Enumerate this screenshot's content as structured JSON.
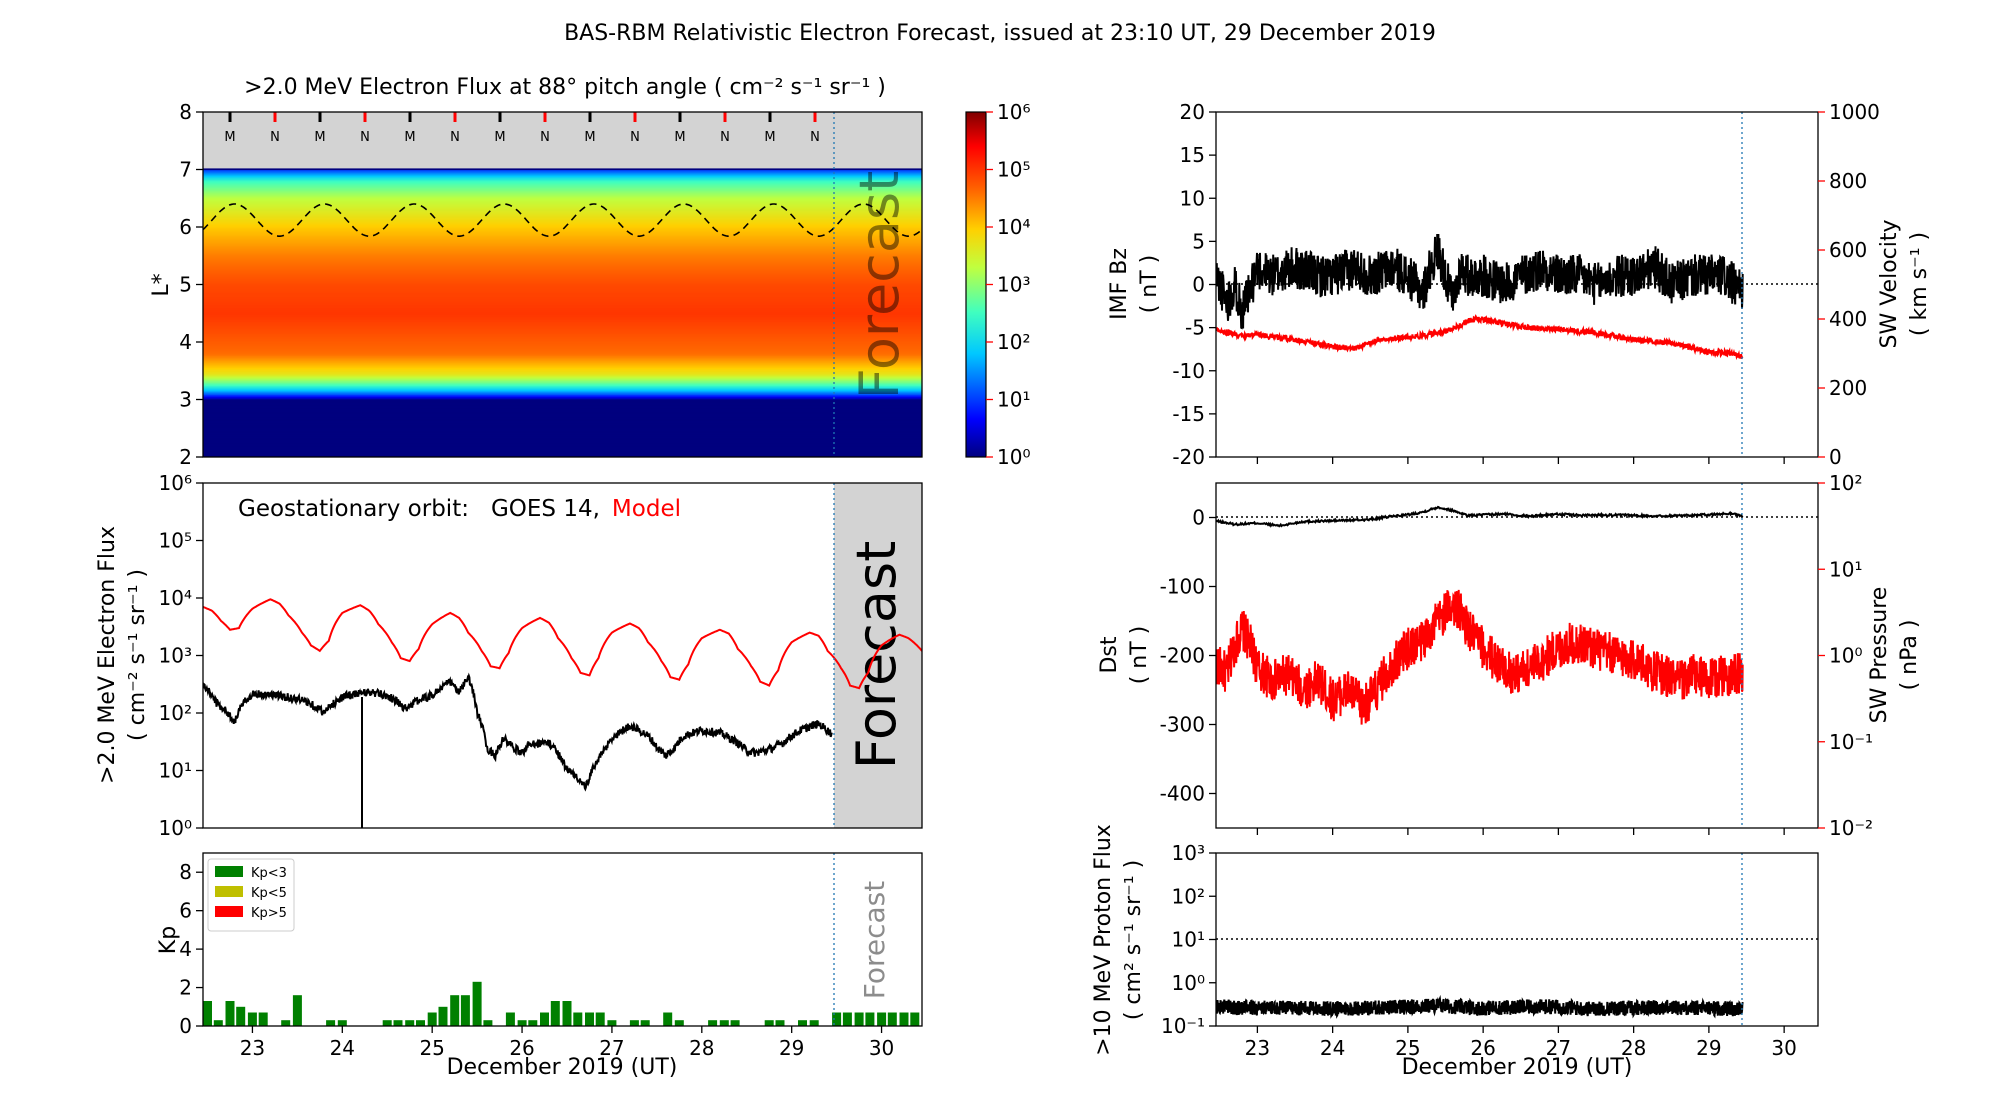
{
  "title": "BAS-RBM Relativistic Electron Forecast, issued at 23:10 UT, 29 December 2019",
  "x_axis": {
    "label": "December 2019 (UT)",
    "ticks": [
      23,
      24,
      25,
      26,
      27,
      28,
      29,
      30
    ],
    "range": [
      22.45,
      30.45
    ],
    "forecast_start": 29.46,
    "forecast_label": "Forecast"
  },
  "panels": {
    "lstar": {
      "title": ">2.0 MeV Electron Flux at 88° pitch angle ( cm⁻² s⁻¹ sr⁻¹ )",
      "ylabel": "L*",
      "yticks": [
        2,
        3,
        4,
        5,
        6,
        7,
        8
      ],
      "mn_markers": [
        "M",
        "N",
        "M",
        "N",
        "M",
        "N",
        "M",
        "N",
        "M",
        "N",
        "M",
        "N",
        "M",
        "N"
      ],
      "colorbar_ticks": [
        "10⁰",
        "10¹",
        "10²",
        "10³",
        "10⁴",
        "10⁵",
        "10⁶"
      ]
    },
    "geo": {
      "label_prefix": "Geostationary orbit:",
      "sat": "GOES 14,",
      "model": "Model",
      "model_color": "#ff0000",
      "ylabel_1": ">2.0 MeV Electron Flux",
      "ylabel_2": "( cm⁻² s⁻¹ sr⁻¹ )",
      "yticks": [
        "10⁰",
        "10¹",
        "10²",
        "10³",
        "10⁴",
        "10⁵",
        "10⁶"
      ]
    },
    "kp": {
      "ylabel": "Kp",
      "yticks": [
        0,
        2,
        4,
        6,
        8
      ],
      "legend": [
        {
          "label": "Kp<3",
          "color": "#008000"
        },
        {
          "label": "Kp<5",
          "color": "#bfbf00"
        },
        {
          "label": "Kp>5",
          "color": "#ff0000"
        }
      ]
    },
    "imf": {
      "ylabel_1": "IMF Bz",
      "ylabel_2": "( nT )",
      "yticks": [
        -20,
        -15,
        -10,
        -5,
        0,
        5,
        10,
        15,
        20
      ],
      "ylabel_right_1": "SW Velocity",
      "ylabel_right_2": "( km s⁻¹ )",
      "yticks_right": [
        0,
        200,
        400,
        600,
        800,
        1000
      ]
    },
    "dst": {
      "ylabel_1": "Dst",
      "ylabel_2": "( nT )",
      "yticks": [
        0,
        -100,
        -200,
        -300,
        -400
      ],
      "ylabel_right_1": "SW Pressure",
      "ylabel_right_2": "( nPa )",
      "yticks_right": [
        "10⁻²",
        "10⁻¹",
        "10⁰",
        "10¹",
        "10²"
      ]
    },
    "proton": {
      "ylabel_1": ">10 MeV Proton Flux",
      "ylabel_2": "( cm² s⁻¹ sr⁻¹ )",
      "yticks": [
        "10⁻¹",
        "10⁰",
        "10¹",
        "10²",
        "10³"
      ]
    }
  },
  "chart_data": [
    {
      "type": "heatmap",
      "title": ">2.0 MeV Electron Flux at 88° pitch angle ( cm⁻² s⁻¹ sr⁻¹ )",
      "ylabel": "L*",
      "ylim": [
        2,
        8
      ],
      "colorbar": {
        "scale": "log",
        "range": [
          1,
          1000000
        ]
      },
      "flux_profile": [
        [
          2.0,
          0
        ],
        [
          3.0,
          0
        ],
        [
          3.1,
          1.2
        ],
        [
          3.25,
          2.5
        ],
        [
          3.45,
          3.7
        ],
        [
          3.8,
          4.6
        ],
        [
          4.5,
          5.0
        ],
        [
          5.0,
          4.85
        ],
        [
          5.5,
          4.5
        ],
        [
          6.0,
          4.0
        ],
        [
          6.5,
          3.3
        ],
        [
          6.8,
          2.5
        ],
        [
          7.0,
          1.0
        ],
        [
          7.02,
          -1
        ]
      ],
      "dashed_line": {
        "base": 6.12,
        "amplitude": 0.28,
        "period_days": 1.0
      }
    },
    {
      "type": "line",
      "xlabel": "December 2019 (UT)",
      "ylabel": ">2.0 MeV Electron Flux ( cm⁻² s⁻¹ sr⁻¹ )",
      "yscale": "log",
      "ylim": [
        1,
        1000000
      ],
      "series": [
        {
          "name": "GOES 14",
          "color": "#000000",
          "x": [
            22.45,
            22.6,
            22.8,
            23.0,
            23.3,
            23.6,
            23.8,
            24.0,
            24.2,
            24.3,
            24.5,
            24.7,
            24.9,
            25.0,
            25.2,
            25.3,
            25.4,
            25.5,
            25.6,
            25.7,
            25.8,
            25.9,
            26.0,
            26.1,
            26.3,
            26.5,
            26.6,
            26.7,
            26.75,
            26.8,
            26.9,
            27.0,
            27.2,
            27.4,
            27.5,
            27.6,
            27.7,
            27.8,
            28.0,
            28.2,
            28.4,
            28.5,
            28.6,
            28.8,
            28.9,
            29.0,
            29.1,
            29.3,
            29.45
          ],
          "y": [
            300,
            150,
            70,
            220,
            200,
            160,
            100,
            190,
            220,
            230,
            200,
            120,
            180,
            200,
            350,
            220,
            400,
            100,
            25,
            18,
            35,
            25,
            20,
            30,
            30,
            10,
            8,
            5,
            7,
            12,
            20,
            35,
            60,
            40,
            25,
            18,
            25,
            40,
            50,
            45,
            30,
            22,
            20,
            25,
            30,
            40,
            50,
            65,
            42
          ]
        },
        {
          "name": "Model",
          "color": "#ff0000",
          "x": [
            22.45,
            22.55,
            22.65,
            22.75,
            22.85,
            23.0,
            23.2,
            23.3,
            23.4,
            23.55,
            23.65,
            23.75,
            23.85,
            24.0,
            24.2,
            24.3,
            24.4,
            24.55,
            24.65,
            24.75,
            24.85,
            25.0,
            25.2,
            25.3,
            25.4,
            25.55,
            25.65,
            25.75,
            25.85,
            26.0,
            26.2,
            26.3,
            26.4,
            26.55,
            26.65,
            26.75,
            26.85,
            27.0,
            27.2,
            27.3,
            27.4,
            27.55,
            27.65,
            27.75,
            27.85,
            28.0,
            28.2,
            28.3,
            28.4,
            28.55,
            28.65,
            28.75,
            28.85,
            29.0,
            29.2,
            29.3,
            29.4,
            29.55,
            29.65,
            29.75,
            29.85,
            30.0,
            30.2,
            30.3,
            30.45
          ],
          "y": [
            7000,
            6000,
            4000,
            2800,
            3000,
            6500,
            9500,
            8000,
            5000,
            2500,
            1500,
            1200,
            1800,
            5500,
            7500,
            6000,
            3500,
            1700,
            900,
            800,
            1300,
            3500,
            5500,
            4500,
            2500,
            1200,
            650,
            600,
            1100,
            3000,
            4500,
            3700,
            2000,
            900,
            500,
            450,
            900,
            2500,
            3600,
            3000,
            1700,
            800,
            420,
            380,
            700,
            2000,
            2800,
            2400,
            1300,
            650,
            350,
            300,
            550,
            1700,
            2500,
            2200,
            1200,
            600,
            300,
            270,
            500,
            1500,
            2300,
            2000,
            1200
          ]
        }
      ]
    },
    {
      "type": "bar",
      "ylabel": "Kp",
      "ylim": [
        0,
        9
      ],
      "x": [
        22.5,
        22.62,
        22.75,
        22.87,
        23.0,
        23.12,
        23.37,
        23.5,
        23.87,
        24.0,
        24.5,
        24.62,
        24.75,
        24.87,
        25.0,
        25.12,
        25.25,
        25.37,
        25.5,
        25.62,
        25.87,
        26.0,
        26.12,
        26.25,
        26.37,
        26.5,
        26.62,
        26.75,
        26.87,
        27.0,
        27.25,
        27.37,
        27.62,
        27.75,
        28.12,
        28.25,
        28.37,
        28.75,
        28.87,
        29.12,
        29.25,
        29.5,
        29.62,
        29.75,
        29.87,
        30.0,
        30.12,
        30.25,
        30.37
      ],
      "values": [
        1.3,
        0.3,
        1.3,
        1.0,
        0.7,
        0.7,
        0.3,
        1.6,
        0.3,
        0.3,
        0.3,
        0.3,
        0.3,
        0.3,
        0.7,
        1.0,
        1.6,
        1.6,
        2.3,
        0.3,
        0.7,
        0.3,
        0.3,
        0.7,
        1.3,
        1.3,
        0.7,
        0.7,
        0.7,
        0.3,
        0.3,
        0.3,
        0.7,
        0.3,
        0.3,
        0.3,
        0.3,
        0.3,
        0.3,
        0.3,
        0.3,
        0.7,
        0.7,
        0.7,
        0.7,
        0.7,
        0.7,
        0.7,
        0.7
      ]
    },
    {
      "type": "line",
      "ylabel": "IMF Bz ( nT )",
      "ylim": [
        -20,
        20
      ],
      "ylim_right": [
        0,
        1000
      ],
      "series": [
        {
          "name": "IMF Bz",
          "color": "#000000",
          "axis": "left",
          "x": [
            22.45,
            22.6,
            22.7,
            22.8,
            22.9,
            23.0,
            23.2,
            23.5,
            23.8,
            24.0,
            24.3,
            24.5,
            24.8,
            25.0,
            25.2,
            25.3,
            25.4,
            25.5,
            25.6,
            25.7,
            25.8,
            26.0,
            26.3,
            26.5,
            26.8,
            27.0,
            27.3,
            27.5,
            27.8,
            28.0,
            28.3,
            28.5,
            28.8,
            29.0,
            29.2,
            29.45
          ],
          "y": [
            1,
            -2,
            0,
            -3,
            -1,
            2,
            1,
            2,
            1,
            1,
            2,
            1,
            2,
            1,
            -1,
            2,
            4,
            1,
            -2,
            2,
            1,
            1,
            0,
            1,
            2,
            1,
            1,
            0,
            1,
            1,
            2,
            0,
            1,
            1,
            1,
            -1
          ]
        },
        {
          "name": "SW Velocity",
          "color": "#ff0000",
          "axis": "right",
          "x": [
            22.45,
            22.8,
            23.0,
            23.5,
            24.0,
            24.3,
            24.6,
            24.9,
            25.3,
            25.6,
            25.8,
            26.0,
            26.3,
            26.6,
            27.0,
            27.5,
            28.0,
            28.5,
            29.0,
            29.3,
            29.45
          ],
          "y": [
            370,
            350,
            355,
            340,
            320,
            315,
            340,
            345,
            355,
            370,
            395,
            400,
            385,
            375,
            370,
            360,
            340,
            330,
            305,
            300,
            290
          ]
        }
      ]
    },
    {
      "type": "line",
      "ylabel": "Dst ( nT )",
      "ylim": [
        -450,
        50
      ],
      "series": [
        {
          "name": "Dst",
          "color": "#000000",
          "axis": "left",
          "x": [
            22.45,
            22.7,
            23.0,
            23.3,
            23.6,
            23.9,
            24.2,
            24.5,
            24.8,
            25.0,
            25.2,
            25.4,
            25.6,
            25.8,
            26.0,
            26.3,
            26.6,
            27.0,
            27.3,
            27.6,
            28.0,
            28.3,
            28.6,
            29.0,
            29.3,
            29.45
          ],
          "y": [
            -5,
            -10,
            -8,
            -12,
            -6,
            -5,
            -4,
            -3,
            2,
            4,
            8,
            15,
            10,
            3,
            4,
            5,
            2,
            5,
            3,
            4,
            3,
            2,
            3,
            4,
            6,
            2
          ]
        },
        {
          "name": "SW Pressure",
          "color": "#ff0000",
          "axis": "right",
          "yscale": "log",
          "x": [
            22.45,
            22.6,
            22.8,
            23.0,
            23.2,
            23.4,
            23.6,
            23.8,
            24.0,
            24.2,
            24.4,
            24.6,
            24.8,
            25.0,
            25.2,
            25.4,
            25.6,
            25.8,
            26.0,
            26.2,
            26.4,
            26.6,
            26.8,
            27.0,
            27.2,
            27.4,
            27.6,
            27.8,
            28.0,
            28.2,
            28.4,
            28.6,
            28.8,
            29.0,
            29.2,
            29.45
          ],
          "y": [
            0.8,
            0.6,
            2.0,
            0.7,
            0.5,
            0.6,
            0.4,
            0.5,
            0.3,
            0.4,
            0.25,
            0.4,
            0.8,
            1.2,
            1.5,
            2.5,
            4.0,
            2.0,
            1.2,
            0.8,
            0.6,
            0.7,
            0.9,
            1.2,
            1.4,
            1.3,
            1.1,
            1.0,
            0.9,
            0.7,
            0.6,
            0.5,
            0.6,
            0.5,
            0.6,
            0.6
          ]
        }
      ]
    },
    {
      "type": "line",
      "ylabel": ">10 MeV Proton Flux ( cm² s⁻¹ sr⁻¹ )",
      "yscale": "log",
      "ylim": [
        0.1,
        1000
      ],
      "threshold": 10,
      "series": [
        {
          "name": ">10 MeV Proton Flux",
          "color": "#000000",
          "x": [
            22.45,
            22.9,
            23.4,
            23.9,
            24.4,
            24.9,
            25.4,
            25.9,
            26.4,
            26.9,
            27.4,
            27.9,
            28.4,
            28.9,
            29.45
          ],
          "y": [
            0.28,
            0.26,
            0.27,
            0.25,
            0.26,
            0.27,
            0.3,
            0.26,
            0.27,
            0.28,
            0.25,
            0.26,
            0.27,
            0.26,
            0.25
          ]
        }
      ]
    }
  ]
}
